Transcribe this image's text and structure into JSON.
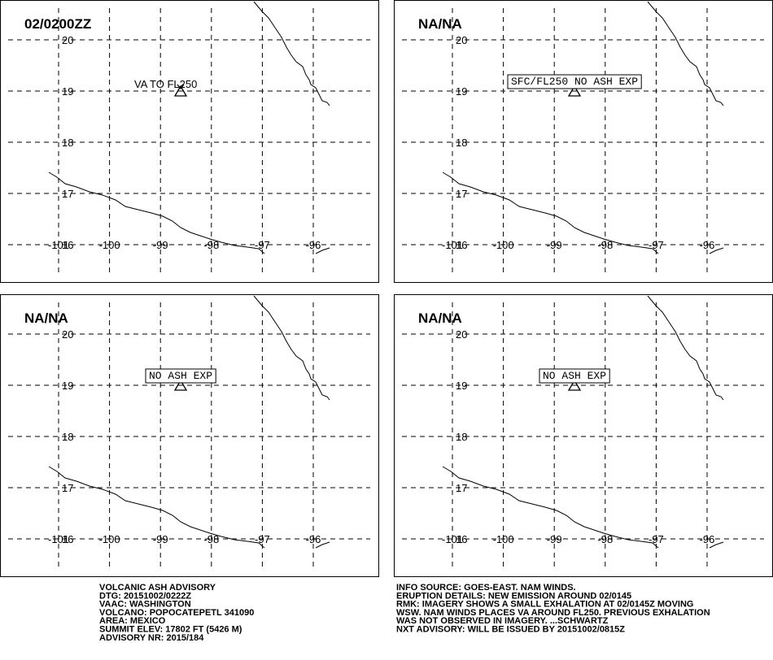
{
  "panels": [
    {
      "title": "02/0200ZZ",
      "label": "VA TO FL250",
      "boxed": false
    },
    {
      "title": "NA/NA",
      "label": "SFC/FL250 NO ASH EXP",
      "boxed": true
    },
    {
      "title": "NA/NA",
      "label": "NO ASH EXP",
      "boxed": true
    },
    {
      "title": "NA/NA",
      "label": "NO ASH EXP",
      "boxed": true
    }
  ],
  "grid": {
    "lats": [
      20,
      19,
      18,
      17,
      16
    ],
    "lons": [
      -101,
      -100,
      -99,
      -98,
      -97,
      -96
    ]
  },
  "footer": {
    "left": [
      "VOLCANIC ASH ADVISORY",
      "DTG: 20151002/0222Z",
      "VAAC: WASHINGTON",
      "VOLCANO: POPOCATEPETL 341090",
      "AREA: MEXICO",
      "SUMMIT ELEV: 17802 FT (5426 M)",
      "ADVISORY NR: 2015/184"
    ],
    "right": [
      "INFO SOURCE: GOES-EAST. NAM WINDS.",
      "ERUPTION DETAILS: NEW EMISSION AROUND 02/0145",
      "RMK: IMAGERY SHOWS A SMALL EXHALATION AT 02/0145Z MOVING",
      "WSW. NAM WINDS PLACES VA AROUND FL250. PREVIOUS EXHALATION",
      "WAS NOT OBSERVED IN IMAGERY. ...SCHWARTZ",
      "NXT ADVISORY: WILL BE ISSUED BY 20151002/0815Z"
    ]
  }
}
